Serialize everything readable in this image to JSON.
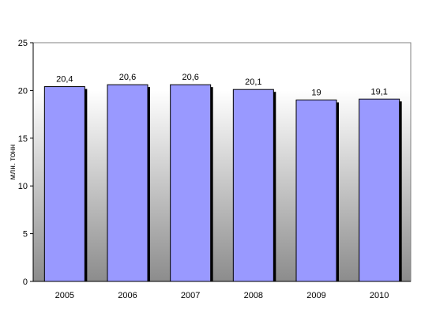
{
  "chart_data": {
    "type": "bar",
    "categories": [
      "2005",
      "2006",
      "2007",
      "2008",
      "2009",
      "2010"
    ],
    "values": [
      20.4,
      20.6,
      20.6,
      20.1,
      19,
      19.1
    ],
    "data_labels": [
      "20,4",
      "20,6",
      "20,6",
      "20,1",
      "19",
      "19,1"
    ],
    "title": "",
    "xlabel": "",
    "ylabel": "млн. тонн",
    "ylim": [
      0,
      25
    ],
    "yticks": [
      "0",
      "5",
      "10",
      "15",
      "20",
      "25"
    ],
    "grid": false,
    "legend": "none",
    "colors": {
      "bar": "#9999FF",
      "bar_outline": "#000000",
      "bar_shadow": "#000000",
      "plot_bg_top": "#FFFFFF",
      "plot_bg_bottom": "#8C8C8C"
    }
  }
}
